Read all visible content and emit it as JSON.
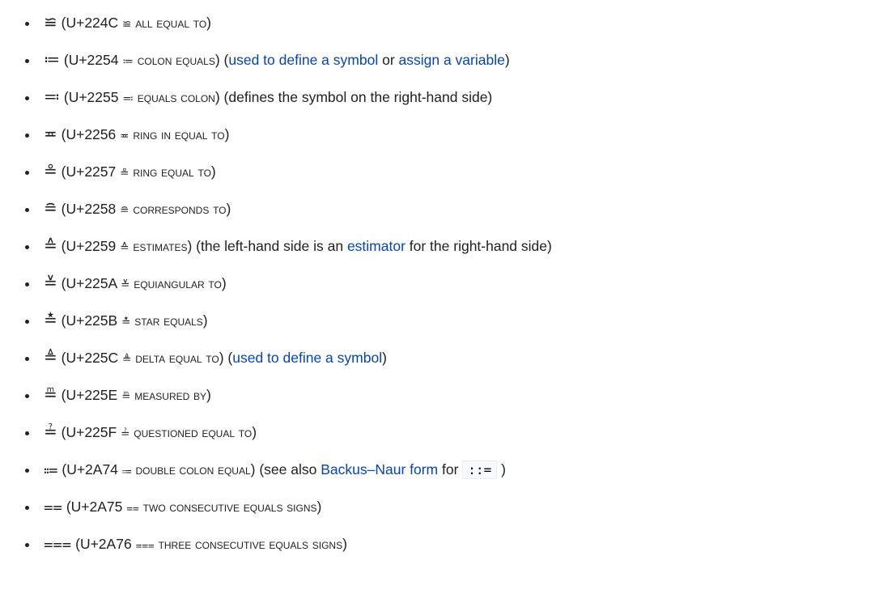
{
  "colors": {
    "text": "#202122",
    "link": "#0645ad",
    "code_bg": "#f8f9fa",
    "code_border": "#eaecf0",
    "background": "#ffffff"
  },
  "items": [
    {
      "glyph": "≌",
      "codepoint": "U+224C",
      "mini": "≌",
      "name": "ALL EQUAL TO",
      "suffix": null
    },
    {
      "glyph": "≔",
      "codepoint": "U+2254",
      "mini": "≔",
      "name": "COLON EQUALS",
      "suffix": {
        "parts": [
          {
            "t": "text",
            "v": "("
          },
          {
            "t": "link",
            "v": "used to define a symbol"
          },
          {
            "t": "text",
            "v": " or "
          },
          {
            "t": "link",
            "v": "assign a variable"
          },
          {
            "t": "text",
            "v": ")"
          }
        ]
      }
    },
    {
      "glyph": "≕",
      "codepoint": "U+2255",
      "mini": "≕",
      "name": "EQUALS COLON",
      "suffix": {
        "parts": [
          {
            "t": "text",
            "v": "(defines the symbol on the right-hand side)"
          }
        ]
      }
    },
    {
      "glyph": "≖",
      "codepoint": "U+2256",
      "mini": "≖",
      "name": "RING IN EQUAL TO",
      "suffix": null
    },
    {
      "glyph": "≗",
      "codepoint": "U+2257",
      "mini": "≗",
      "name": "RING EQUAL TO",
      "suffix": null
    },
    {
      "glyph": "≘",
      "codepoint": "U+2258",
      "mini": "≘",
      "name": "CORRESPONDS TO",
      "suffix": null
    },
    {
      "glyph": "≙",
      "codepoint": "U+2259",
      "mini": "≙",
      "name": "ESTIMATES",
      "suffix": {
        "parts": [
          {
            "t": "text",
            "v": "(the left-hand side is an "
          },
          {
            "t": "link",
            "v": "estimator"
          },
          {
            "t": "text",
            "v": " for the right-hand side)"
          }
        ]
      }
    },
    {
      "glyph": "≚",
      "codepoint": "U+225A",
      "mini": "≚",
      "name": "EQUIANGULAR TO",
      "suffix": null
    },
    {
      "glyph": "≛",
      "codepoint": "U+225B",
      "mini": "≛",
      "name": "STAR EQUALS",
      "suffix": null
    },
    {
      "glyph": "≜",
      "codepoint": "U+225C",
      "mini": "≜",
      "name": "DELTA EQUAL TO",
      "suffix": {
        "parts": [
          {
            "t": "text",
            "v": "("
          },
          {
            "t": "link",
            "v": "used to define a symbol"
          },
          {
            "t": "text",
            "v": ")"
          }
        ]
      }
    },
    {
      "glyph": "≞",
      "codepoint": "U+225E",
      "mini": "≞",
      "name": "MEASURED BY",
      "suffix": null
    },
    {
      "glyph": "≟",
      "codepoint": "U+225F",
      "mini": "≟",
      "name": "QUESTIONED EQUAL TO",
      "suffix": null
    },
    {
      "glyph": "⩴",
      "codepoint": "U+2A74",
      "mini": "⩴",
      "name": "DOUBLE COLON EQUAL",
      "suffix": {
        "parts": [
          {
            "t": "text",
            "v": "(see also "
          },
          {
            "t": "link",
            "v": "Backus–Naur form"
          },
          {
            "t": "text",
            "v": " for "
          },
          {
            "t": "code",
            "v": "::="
          },
          {
            "t": "text",
            "v": " )"
          }
        ]
      }
    },
    {
      "glyph": "⩵",
      "codepoint": "U+2A75",
      "mini": "⩵",
      "name": "TWO CONSECUTIVE EQUALS SIGNS",
      "suffix": null
    },
    {
      "glyph": "⩶",
      "codepoint": "U+2A76",
      "mini": "⩶",
      "name": "THREE CONSECUTIVE EQUALS SIGNS",
      "suffix": null
    }
  ]
}
